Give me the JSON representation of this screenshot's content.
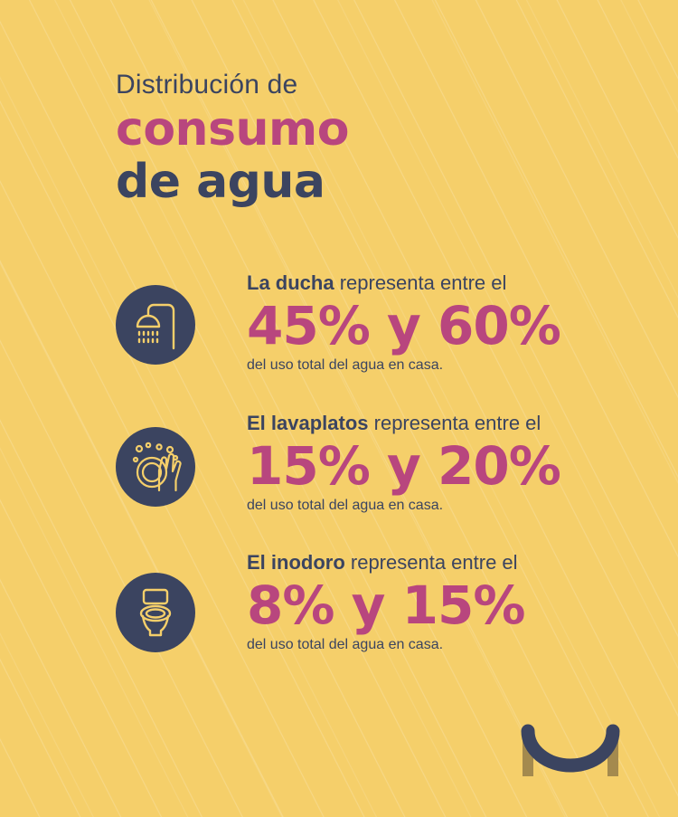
{
  "title": {
    "line1": "Distribución de",
    "line2": "consumo",
    "line3": "de agua"
  },
  "items": [
    {
      "icon": "shower-icon",
      "subject": "La ducha",
      "lead_rest": " representa entre el",
      "range": "45% y 60%",
      "tail": "del uso total del agua en casa."
    },
    {
      "icon": "dishwashing-hands-icon",
      "subject": "El lavaplatos",
      "lead_rest": " representa entre el",
      "range": "15% y 20%",
      "tail": "del uso total del agua en casa."
    },
    {
      "icon": "toilet-icon",
      "subject": "El inodoro",
      "lead_rest": " representa entre el",
      "range": "8% y 15%",
      "tail": "del uso total del agua en casa."
    }
  ],
  "colors": {
    "background": "#f5cf6a",
    "navy": "#3b4460",
    "accent": "#b8467e",
    "logo_gold": "#a48a4e"
  },
  "logo": {
    "icon": "smile-u-logo"
  }
}
